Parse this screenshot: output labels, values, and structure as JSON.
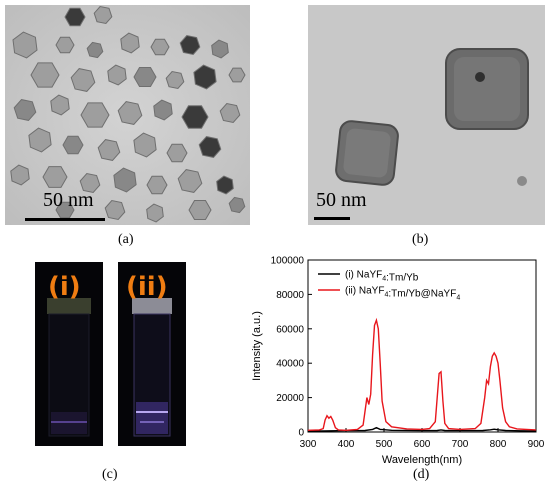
{
  "panel_a": {
    "scale_label": "50 nm",
    "caption": "(a)"
  },
  "panel_b": {
    "scale_label": "50 nm",
    "caption": "(b)"
  },
  "panel_c": {
    "vial_1_label": "(i)",
    "vial_2_label": "(ii)",
    "caption": "(c)"
  },
  "panel_d": {
    "caption": "(d)"
  },
  "chart_data": {
    "type": "line",
    "xlabel": "Wavelength(nm)",
    "ylabel": "Intensity (a.u.)",
    "xlim": [
      300,
      900
    ],
    "ylim": [
      0,
      100000
    ],
    "xticks": [
      300,
      400,
      500,
      600,
      700,
      800,
      900
    ],
    "yticks": [
      0,
      20000,
      40000,
      60000,
      80000,
      100000
    ],
    "legend_position": "top-left",
    "series": [
      {
        "name": "(i) NaYF4:Tm/Yb",
        "color": "#000000",
        "x": [
          300,
          340,
          360,
          400,
          450,
          470,
          480,
          490,
          520,
          600,
          640,
          650,
          660,
          700,
          760,
          780,
          790,
          800,
          820,
          860,
          900
        ],
        "y": [
          500,
          600,
          700,
          800,
          900,
          1500,
          2500,
          1500,
          1000,
          800,
          900,
          1200,
          900,
          800,
          900,
          1300,
          1600,
          1300,
          900,
          700,
          600
        ]
      },
      {
        "name": "(ii) NaYF4:Tm/Yb@NaYF4",
        "color": "#e8161c",
        "x": [
          300,
          330,
          340,
          345,
          350,
          355,
          360,
          365,
          372,
          380,
          400,
          430,
          445,
          450,
          455,
          460,
          465,
          470,
          475,
          480,
          485,
          490,
          495,
          505,
          520,
          560,
          600,
          620,
          635,
          640,
          645,
          650,
          655,
          660,
          670,
          700,
          740,
          755,
          765,
          770,
          775,
          780,
          785,
          790,
          795,
          800,
          805,
          812,
          820,
          830,
          850,
          900
        ],
        "y": [
          1000,
          1200,
          2000,
          7000,
          9500,
          8000,
          9000,
          7000,
          2500,
          1200,
          1000,
          1500,
          4000,
          12000,
          20000,
          16000,
          22000,
          45000,
          62000,
          65000,
          60000,
          40000,
          18000,
          6000,
          3000,
          1800,
          1500,
          2000,
          6000,
          20000,
          34000,
          35000,
          18000,
          5000,
          2000,
          1500,
          2000,
          5000,
          20000,
          30000,
          28000,
          38000,
          44000,
          46000,
          44000,
          40000,
          30000,
          14000,
          6000,
          3000,
          1800,
          1200
        ]
      }
    ]
  }
}
